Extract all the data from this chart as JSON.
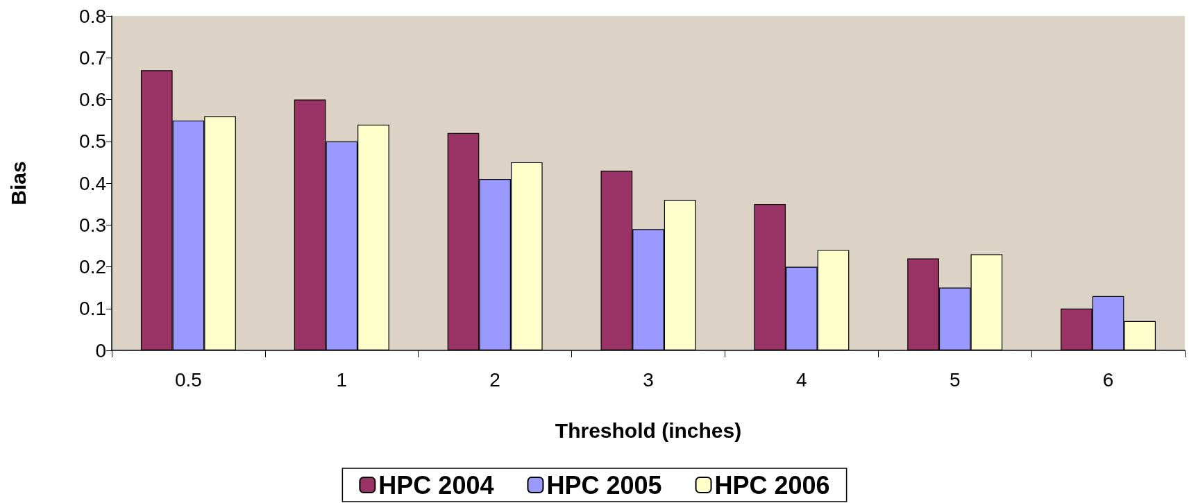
{
  "chart_data": {
    "type": "bar",
    "xlabel": "Threshold (inches)",
    "ylabel": "Bias",
    "categories": [
      "0.5",
      "1",
      "2",
      "3",
      "4",
      "5",
      "6"
    ],
    "series": [
      {
        "name": "HPC 2004",
        "color": "#993366",
        "values": [
          0.67,
          0.6,
          0.52,
          0.43,
          0.35,
          0.22,
          0.1
        ]
      },
      {
        "name": "HPC 2005",
        "color": "#9999ff",
        "values": [
          0.55,
          0.5,
          0.41,
          0.29,
          0.2,
          0.15,
          0.13
        ]
      },
      {
        "name": "HPC 2006",
        "color": "#ffffcc",
        "values": [
          0.56,
          0.54,
          0.45,
          0.36,
          0.24,
          0.23,
          0.07
        ]
      }
    ],
    "ylim": [
      0,
      0.8
    ],
    "yticks": [
      0,
      0.1,
      0.2,
      0.3,
      0.4,
      0.5,
      0.6,
      0.7,
      0.8
    ],
    "grid": false,
    "legend": "bottom"
  }
}
